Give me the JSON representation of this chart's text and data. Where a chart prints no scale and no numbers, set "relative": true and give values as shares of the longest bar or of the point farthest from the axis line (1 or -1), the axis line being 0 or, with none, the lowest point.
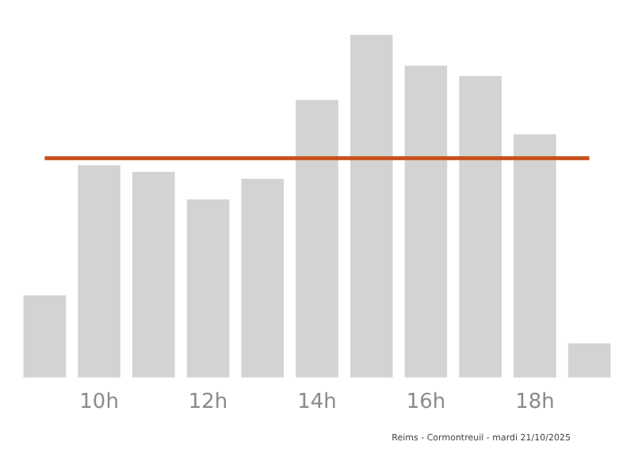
{
  "chart_data": {
    "type": "bar",
    "relative": true,
    "categories": [
      null,
      "10h",
      null,
      "12h",
      null,
      "14h",
      null,
      "16h",
      null,
      "18h",
      null
    ],
    "values": [
      0.24,
      0.62,
      0.6,
      0.52,
      0.58,
      0.81,
      1,
      0.91,
      0.88,
      0.71,
      0.1
    ],
    "color": "#d3d3d3",
    "ref_lines": [
      {
        "axis": "y",
        "value": 0.64,
        "color": "#c8501a"
      }
    ],
    "annotations": [
      "Reims - Cormontreuil - mardi 21/10/2025"
    ],
    "grid": false,
    "legend": false
  }
}
